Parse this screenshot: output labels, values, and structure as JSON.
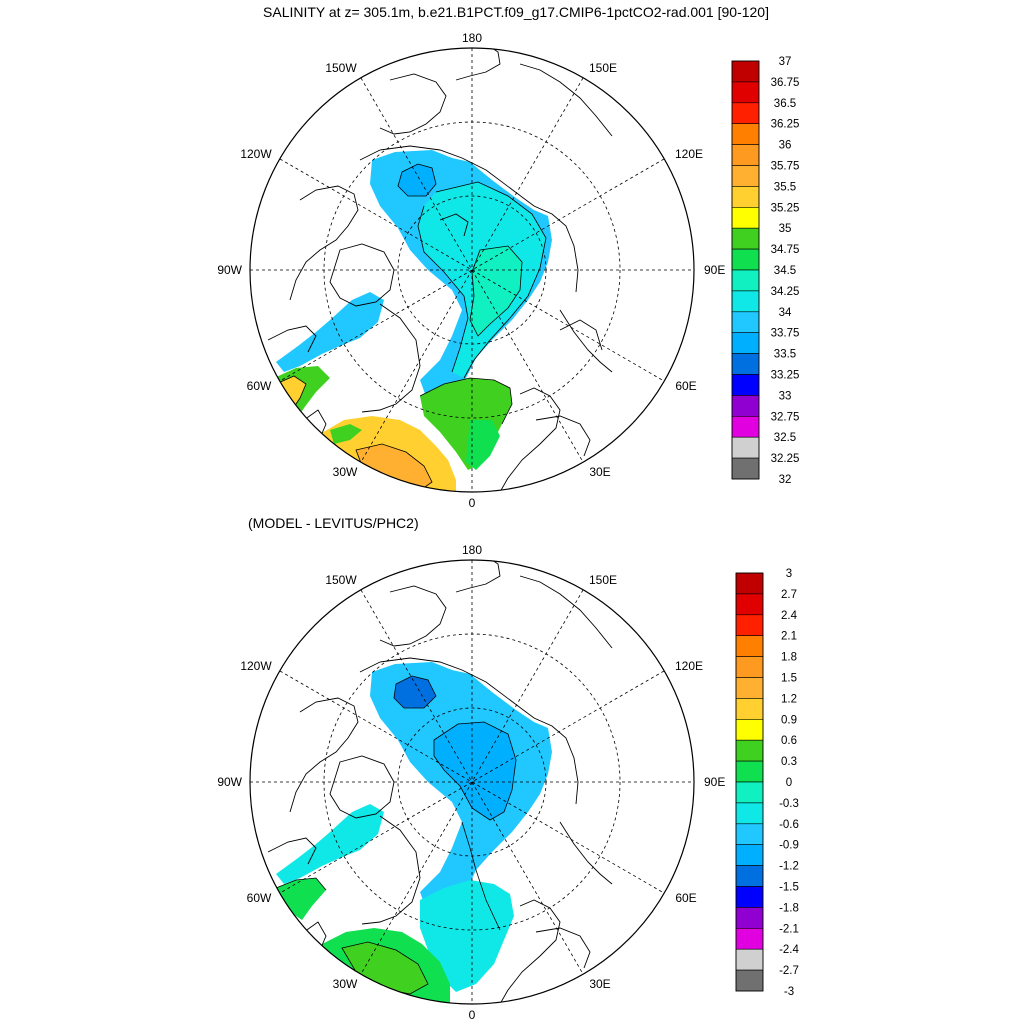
{
  "figure": {
    "title": "SALINITY at z= 305.1m, b.e21.B1PCT.f09_g17.CMIP6-1pctCO2-rad.001 [90-120]",
    "diff_title": "(MODEL - LEVITUS/PHC2)"
  },
  "map_labels": {
    "top": "180",
    "bottom": "0",
    "left": "90W",
    "right": "90E",
    "upper_left_outer": "120W",
    "upper_left_inner": "150W",
    "upper_right_inner": "150E",
    "upper_right_outer": "120E",
    "lower_left_outer": "60W",
    "lower_left_inner": "30W",
    "lower_right_inner": "30E",
    "lower_right_outer": "60E"
  },
  "colorbars": {
    "top": {
      "labels": [
        "37",
        "36.75",
        "36.5",
        "36.25",
        "36",
        "35.75",
        "35.5",
        "35.25",
        "35",
        "34.75",
        "34.5",
        "34.25",
        "34",
        "33.75",
        "33.5",
        "33.25",
        "33",
        "32.75",
        "32.5",
        "32.25",
        "32"
      ],
      "colors": [
        "#c00000",
        "#e00000",
        "#ff2000",
        "#ff8000",
        "#ff9a20",
        "#ffb030",
        "#ffd030",
        "#ffff00",
        "#40d020",
        "#10e050",
        "#10f0c0",
        "#10e8e8",
        "#20c8ff",
        "#00b0ff",
        "#0070e0",
        "#0000ff",
        "#9000d0",
        "#e000e0",
        "#d0d0d0",
        "#707070"
      ]
    },
    "bottom": {
      "labels": [
        "3",
        "2.7",
        "2.4",
        "2.1",
        "1.8",
        "1.5",
        "1.2",
        "0.9",
        "0.6",
        "0.3",
        "0",
        "-0.3",
        "-0.6",
        "-0.9",
        "-1.2",
        "-1.5",
        "-1.8",
        "-2.1",
        "-2.4",
        "-2.7",
        "-3"
      ],
      "colors": [
        "#c00000",
        "#e00000",
        "#ff2000",
        "#ff8000",
        "#ff9a20",
        "#ffb030",
        "#ffd030",
        "#ffff00",
        "#40d020",
        "#10e050",
        "#10f0c0",
        "#10e8e8",
        "#20c8ff",
        "#00b0ff",
        "#0070e0",
        "#0000ff",
        "#9000d0",
        "#e000e0",
        "#d0d0d0",
        "#707070"
      ]
    }
  }
}
